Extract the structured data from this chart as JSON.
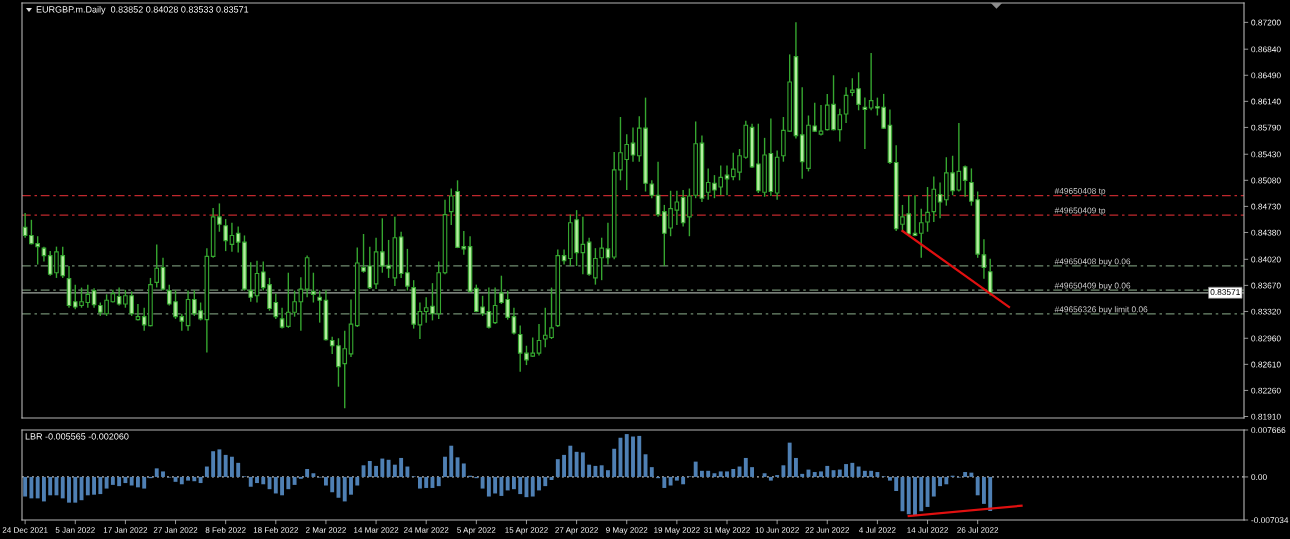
{
  "chart_data": [
    {
      "type": "candlestick",
      "title": "EURGBP.m.Daily  0.83852 0.84028 0.83533 0.83571",
      "color": "#36a730",
      "categories": [
        "24 Dec 2021",
        null,
        null,
        null,
        null,
        null,
        null,
        null,
        "5 Jan 2022",
        null,
        null,
        null,
        null,
        null,
        null,
        null,
        "17 Jan 2022",
        null,
        null,
        null,
        null,
        null,
        null,
        null,
        "27 Jan 2022",
        null,
        null,
        null,
        null,
        null,
        null,
        null,
        "8 Feb 2022",
        null,
        null,
        null,
        null,
        null,
        null,
        null,
        "18 Feb 2022",
        null,
        null,
        null,
        null,
        null,
        null,
        null,
        "2 Mar 2022",
        null,
        null,
        null,
        null,
        null,
        null,
        null,
        "14 Mar 2022",
        null,
        null,
        null,
        null,
        null,
        null,
        null,
        "24 Mar 2022",
        null,
        null,
        null,
        null,
        null,
        null,
        null,
        "5 Apr 2022",
        null,
        null,
        null,
        null,
        null,
        null,
        null,
        "15 Apr 2022",
        null,
        null,
        null,
        null,
        null,
        null,
        null,
        "27 Apr 2022",
        null,
        null,
        null,
        null,
        null,
        null,
        null,
        "9 May 2022",
        null,
        null,
        null,
        null,
        null,
        null,
        null,
        "19 May 2022",
        null,
        null,
        null,
        null,
        null,
        null,
        null,
        "31 May 2022",
        null,
        null,
        null,
        null,
        null,
        null,
        null,
        "10 Jun 2022",
        null,
        null,
        null,
        null,
        null,
        null,
        null,
        "22 Jun 2022",
        null,
        null,
        null,
        null,
        null,
        null,
        null,
        "4 Jul 2022",
        null,
        null,
        null,
        null,
        null,
        null,
        null,
        "14 Jul 2022",
        null,
        null,
        null,
        null,
        null,
        null,
        null,
        "26 Jul 2022",
        null,
        null,
        null,
        null,
        null,
        null,
        null,
        null,
        null,
        null,
        null,
        null,
        null,
        null,
        null,
        null,
        null,
        null,
        null,
        null,
        null,
        null,
        null,
        null,
        null,
        null,
        null,
        null,
        null,
        null,
        null,
        null,
        null,
        null,
        null,
        null,
        null,
        null,
        null,
        null,
        null,
        null
      ],
      "ohlc": [
        [
          0.8445,
          0.8464,
          0.8431,
          0.8434
        ],
        [
          0.8434,
          0.8455,
          0.8422,
          0.8423
        ],
        [
          0.8423,
          0.8433,
          0.8395,
          0.8419
        ],
        [
          0.8417,
          0.8419,
          0.8399,
          0.8407
        ],
        [
          0.8407,
          0.8413,
          0.838,
          0.8382
        ],
        [
          0.8384,
          0.8419,
          0.8377,
          0.8412
        ],
        [
          0.8407,
          0.8419,
          0.8377,
          0.838
        ],
        [
          0.8376,
          0.8393,
          0.8337,
          0.834
        ],
        [
          0.8345,
          0.8368,
          0.8335,
          0.8338
        ],
        [
          0.834,
          0.8364,
          0.8337,
          0.8345
        ],
        [
          0.8344,
          0.8368,
          0.8337,
          0.8355
        ],
        [
          0.836,
          0.8363,
          0.8337,
          0.8341
        ],
        [
          0.834,
          0.8344,
          0.8326,
          0.8331
        ],
        [
          0.8329,
          0.8355,
          0.8326,
          0.8347
        ],
        [
          0.8345,
          0.8361,
          0.8344,
          0.8356
        ],
        [
          0.8352,
          0.8364,
          0.834,
          0.8342
        ],
        [
          0.8342,
          0.8361,
          0.8337,
          0.8353
        ],
        [
          0.8353,
          0.8359,
          0.8326,
          0.8329
        ],
        [
          0.8321,
          0.8342,
          0.832,
          0.8325
        ],
        [
          0.8325,
          0.8337,
          0.8306,
          0.8314
        ],
        [
          0.8313,
          0.8377,
          0.8312,
          0.8368
        ],
        [
          0.8371,
          0.8422,
          0.8364,
          0.839
        ],
        [
          0.8391,
          0.8404,
          0.836,
          0.8362
        ],
        [
          0.836,
          0.8368,
          0.834,
          0.8342
        ],
        [
          0.8345,
          0.836,
          0.8322,
          0.8325
        ],
        [
          0.8325,
          0.8329,
          0.8306,
          0.8319
        ],
        [
          0.8313,
          0.836,
          0.8306,
          0.8348
        ],
        [
          0.8348,
          0.836,
          0.8326,
          0.8329
        ],
        [
          0.8333,
          0.8344,
          0.832,
          0.8322
        ],
        [
          0.8321,
          0.8417,
          0.8277,
          0.8406
        ],
        [
          0.8406,
          0.8471,
          0.8404,
          0.8459
        ],
        [
          0.8459,
          0.8477,
          0.8439,
          0.8449
        ],
        [
          0.8447,
          0.8456,
          0.8413,
          0.8427
        ],
        [
          0.8422,
          0.8451,
          0.8412,
          0.8434
        ],
        [
          0.8437,
          0.8446,
          0.8411,
          0.8425
        ],
        [
          0.8425,
          0.8434,
          0.836,
          0.8362
        ],
        [
          0.836,
          0.8398,
          0.8345,
          0.8351
        ],
        [
          0.8353,
          0.84,
          0.8344,
          0.8383
        ],
        [
          0.8385,
          0.8399,
          0.836,
          0.8364
        ],
        [
          0.8368,
          0.8377,
          0.8333,
          0.8336
        ],
        [
          0.8344,
          0.8356,
          0.8322,
          0.8325
        ],
        [
          0.8322,
          0.8337,
          0.8309,
          0.8311
        ],
        [
          0.8312,
          0.8384,
          0.831,
          0.8331
        ],
        [
          0.8331,
          0.836,
          0.8325,
          0.8345
        ],
        [
          0.8345,
          0.8378,
          0.8306,
          0.8362
        ],
        [
          0.8362,
          0.8407,
          0.8351,
          0.8404
        ],
        [
          0.8359,
          0.8384,
          0.8344,
          0.8355
        ],
        [
          0.8351,
          0.836,
          0.8317,
          0.8347
        ],
        [
          0.8347,
          0.836,
          0.8293,
          0.8294
        ],
        [
          0.8293,
          0.8298,
          0.8275,
          0.8286
        ],
        [
          0.8286,
          0.8296,
          0.8231,
          0.8258
        ],
        [
          0.8262,
          0.8306,
          0.8202,
          0.8282
        ],
        [
          0.8275,
          0.8348,
          0.8271,
          0.8315
        ],
        [
          0.8313,
          0.8418,
          0.8311,
          0.8397
        ],
        [
          0.8391,
          0.8436,
          0.8384,
          0.8386
        ],
        [
          0.8393,
          0.8419,
          0.8362,
          0.8364
        ],
        [
          0.8369,
          0.8431,
          0.8362,
          0.8412
        ],
        [
          0.8412,
          0.8457,
          0.8384,
          0.8393
        ],
        [
          0.8394,
          0.8428,
          0.8377,
          0.839
        ],
        [
          0.8377,
          0.8459,
          0.8366,
          0.8431
        ],
        [
          0.8432,
          0.8439,
          0.8377,
          0.8383
        ],
        [
          0.8384,
          0.8416,
          0.836,
          0.8366
        ],
        [
          0.8364,
          0.8374,
          0.8309,
          0.8315
        ],
        [
          0.8314,
          0.8344,
          0.8295,
          0.8332
        ],
        [
          0.8332,
          0.8351,
          0.8317,
          0.8337
        ],
        [
          0.8339,
          0.837,
          0.832,
          0.8329
        ],
        [
          0.8329,
          0.8399,
          0.8322,
          0.8384
        ],
        [
          0.8384,
          0.8482,
          0.8382,
          0.8462
        ],
        [
          0.8466,
          0.8497,
          0.8448,
          0.8487
        ],
        [
          0.8493,
          0.8508,
          0.8417,
          0.8418
        ],
        [
          0.8419,
          0.844,
          0.8408,
          0.8416
        ],
        [
          0.8419,
          0.8433,
          0.8357,
          0.8359
        ],
        [
          0.8363,
          0.8368,
          0.8331,
          0.8332
        ],
        [
          0.8338,
          0.8353,
          0.8326,
          0.8329
        ],
        [
          0.8332,
          0.8364,
          0.8309,
          0.8311
        ],
        [
          0.8317,
          0.8364,
          0.8315,
          0.834
        ],
        [
          0.8357,
          0.838,
          0.8342,
          0.8344
        ],
        [
          0.8348,
          0.836,
          0.8321,
          0.8324
        ],
        [
          0.8325,
          0.8337,
          0.8301,
          0.8303
        ],
        [
          0.8301,
          0.8313,
          0.8251,
          0.8276
        ],
        [
          0.8276,
          0.8286,
          0.826,
          0.8267
        ],
        [
          0.8272,
          0.8297,
          0.8271,
          0.8276
        ],
        [
          0.8276,
          0.8315,
          0.8273,
          0.8293
        ],
        [
          0.8295,
          0.8337,
          0.8284,
          0.83
        ],
        [
          0.8297,
          0.8364,
          0.8295,
          0.831
        ],
        [
          0.8313,
          0.8415,
          0.8311,
          0.8407
        ],
        [
          0.8407,
          0.8415,
          0.8395,
          0.84
        ],
        [
          0.8403,
          0.8462,
          0.8393,
          0.8451
        ],
        [
          0.8455,
          0.8468,
          0.8393,
          0.8411
        ],
        [
          0.8411,
          0.8459,
          0.8382,
          0.8422
        ],
        [
          0.8425,
          0.8431,
          0.838,
          0.8382
        ],
        [
          0.8377,
          0.8417,
          0.8368,
          0.8403
        ],
        [
          0.8404,
          0.8431,
          0.8374,
          0.8417
        ],
        [
          0.8416,
          0.8451,
          0.8395,
          0.8404
        ],
        [
          0.8405,
          0.8546,
          0.8402,
          0.8522
        ],
        [
          0.8522,
          0.8593,
          0.8508,
          0.8545
        ],
        [
          0.8536,
          0.857,
          0.8495,
          0.8556
        ],
        [
          0.8558,
          0.8579,
          0.8533,
          0.8542
        ],
        [
          0.8541,
          0.8594,
          0.8533,
          0.8578
        ],
        [
          0.8578,
          0.8619,
          0.8493,
          0.8504
        ],
        [
          0.8503,
          0.8508,
          0.8484,
          0.8488
        ],
        [
          0.8488,
          0.8533,
          0.8459,
          0.8462
        ],
        [
          0.8466,
          0.8475,
          0.8393,
          0.8437
        ],
        [
          0.8444,
          0.8494,
          0.8433,
          0.847
        ],
        [
          0.8468,
          0.8494,
          0.8448,
          0.8479
        ],
        [
          0.8485,
          0.8495,
          0.8446,
          0.8451
        ],
        [
          0.8459,
          0.8497,
          0.8433,
          0.8487
        ],
        [
          0.8488,
          0.8587,
          0.8484,
          0.8557
        ],
        [
          0.8558,
          0.8568,
          0.8479,
          0.8484
        ],
        [
          0.8492,
          0.8524,
          0.8482,
          0.8505
        ],
        [
          0.8504,
          0.8515,
          0.8484,
          0.8495
        ],
        [
          0.8499,
          0.8528,
          0.8488,
          0.8512
        ],
        [
          0.8515,
          0.8528,
          0.8488,
          0.851
        ],
        [
          0.8513,
          0.8545,
          0.8508,
          0.8523
        ],
        [
          0.8519,
          0.855,
          0.8508,
          0.8541
        ],
        [
          0.8539,
          0.8588,
          0.8537,
          0.8582
        ],
        [
          0.8579,
          0.8584,
          0.8525,
          0.8526
        ],
        [
          0.853,
          0.8584,
          0.8491,
          0.8494
        ],
        [
          0.8492,
          0.8565,
          0.8486,
          0.8542
        ],
        [
          0.8544,
          0.8591,
          0.8487,
          0.8493
        ],
        [
          0.8491,
          0.8548,
          0.8482,
          0.8539
        ],
        [
          0.8541,
          0.8593,
          0.8533,
          0.8575
        ],
        [
          0.8574,
          0.8677,
          0.8573,
          0.864
        ],
        [
          0.8674,
          0.872,
          0.8564,
          0.8568
        ],
        [
          0.8569,
          0.8633,
          0.851,
          0.8533
        ],
        [
          0.8524,
          0.8595,
          0.852,
          0.8582
        ],
        [
          0.8581,
          0.8612,
          0.8573,
          0.8574
        ],
        [
          0.857,
          0.8609,
          0.8568,
          0.8574
        ],
        [
          0.8576,
          0.8624,
          0.8575,
          0.8609
        ],
        [
          0.861,
          0.8649,
          0.8575,
          0.8576
        ],
        [
          0.8576,
          0.8604,
          0.856,
          0.8596
        ],
        [
          0.8597,
          0.8633,
          0.8585,
          0.8622
        ],
        [
          0.8626,
          0.8645,
          0.8621,
          0.8629
        ],
        [
          0.8631,
          0.8653,
          0.8602,
          0.861
        ],
        [
          0.8606,
          0.8619,
          0.855,
          0.8603
        ],
        [
          0.8605,
          0.8679,
          0.8602,
          0.8615
        ],
        [
          0.8607,
          0.8619,
          0.8595,
          0.8605
        ],
        [
          0.8606,
          0.8624,
          0.8577,
          0.8578
        ],
        [
          0.8582,
          0.8603,
          0.853,
          0.8532
        ],
        [
          0.8532,
          0.8555,
          0.844,
          0.8443
        ],
        [
          0.8449,
          0.8475,
          0.8439,
          0.8459
        ],
        [
          0.8463,
          0.8488,
          0.8434,
          0.8436
        ],
        [
          0.8437,
          0.8488,
          0.8433,
          0.8434
        ],
        [
          0.8437,
          0.847,
          0.8404,
          0.8451
        ],
        [
          0.8452,
          0.8499,
          0.8439,
          0.8465
        ],
        [
          0.8466,
          0.8513,
          0.8452,
          0.8496
        ],
        [
          0.8489,
          0.8505,
          0.8457,
          0.8479
        ],
        [
          0.8482,
          0.8539,
          0.8474,
          0.8518
        ],
        [
          0.8518,
          0.8541,
          0.8488,
          0.8494
        ],
        [
          0.8495,
          0.8585,
          0.8493,
          0.852
        ],
        [
          0.8526,
          0.8528,
          0.8486,
          0.8508
        ],
        [
          0.8505,
          0.8524,
          0.8474,
          0.848
        ],
        [
          0.8482,
          0.8493,
          0.8404,
          0.8409
        ],
        [
          0.8408,
          0.8429,
          0.8376,
          0.8391
        ],
        [
          0.83852,
          0.84028,
          0.83533,
          0.83571
        ],
        null,
        null,
        null,
        null,
        null,
        null,
        null,
        null,
        null,
        null,
        null,
        null,
        null,
        null,
        null,
        null,
        null,
        null,
        null,
        null,
        null,
        null,
        null,
        null,
        null,
        null,
        null,
        null,
        null,
        null,
        null,
        null,
        null,
        null,
        null,
        null,
        null,
        null,
        null,
        null
      ],
      "colors": [
        "#b4eea0",
        "#b4eea0",
        "#b4eea0",
        "#b4eea0",
        "#b4eea0",
        "#000000",
        "#b4eea0",
        "#b4eea0",
        "#b4eea0",
        "#000000",
        "#000000",
        "#b4eea0",
        "#b4eea0",
        "#000000",
        "#000000",
        "#b4eea0",
        "#000000",
        "#b4eea0",
        "#000000",
        "#b4eea0",
        "#000000",
        "#000000",
        "#b4eea0",
        "#b4eea0",
        "#b4eea0",
        "#b4eea0",
        "#000000",
        "#b4eea0",
        "#b4eea0",
        "#000000",
        "#000000",
        "#b4eea0",
        "#b4eea0",
        "#000000",
        "#b4eea0",
        "#b4eea0",
        "#b4eea0",
        "#000000",
        "#b4eea0",
        "#b4eea0",
        "#b4eea0",
        "#b4eea0",
        "#000000",
        "#000000",
        "#000000",
        "#000000",
        "#b4eea0",
        "#b4eea0",
        "#b4eea0",
        "#b4eea0",
        "#b4eea0",
        "#000000",
        "#000000",
        "#000000",
        "#b4eea0",
        "#b4eea0",
        "#000000",
        "#b4eea0",
        "#b4eea0",
        "#000000",
        "#b4eea0",
        "#b4eea0",
        "#b4eea0",
        "#000000",
        "#000000",
        "#b4eea0",
        "#000000",
        "#000000",
        "#000000",
        "#b4eea0",
        "#b4eea0",
        "#b4eea0",
        "#b4eea0",
        "#b4eea0",
        "#b4eea0",
        "#000000",
        "#b4eea0",
        "#b4eea0",
        "#b4eea0",
        "#b4eea0",
        "#b4eea0",
        "#000000",
        "#000000",
        "#000000",
        "#000000",
        "#000000",
        "#b4eea0",
        "#000000",
        "#b4eea0",
        "#000000",
        "#b4eea0",
        "#000000",
        "#000000",
        "#b4eea0",
        "#000000",
        "#000000",
        "#000000",
        "#b4eea0",
        "#000000",
        "#b4eea0",
        "#b4eea0",
        "#b4eea0",
        "#b4eea0",
        "#000000",
        "#000000",
        "#b4eea0",
        "#000000",
        "#000000",
        "#b4eea0",
        "#000000",
        "#b4eea0",
        "#000000",
        "#b4eea0",
        "#000000",
        "#000000",
        "#000000",
        "#b4eea0",
        "#b4eea0",
        "#000000",
        "#b4eea0",
        "#000000",
        "#000000",
        "#000000",
        "#b4eea0",
        "#b4eea0",
        "#000000",
        "#b4eea0",
        "#000000",
        "#000000",
        "#b4eea0",
        "#000000",
        "#000000",
        "#000000",
        "#b4eea0",
        "#b4eea0",
        "#000000",
        "#b4eea0",
        "#b4eea0",
        "#b4eea0",
        "#b4eea0",
        "#000000",
        "#b4eea0",
        "#b4eea0",
        "#000000",
        "#000000",
        "#000000",
        "#b4eea0",
        "#000000",
        "#b4eea0",
        "#000000",
        "#b4eea0",
        "#b4eea0",
        "#b4eea0",
        "#b4eea0",
        "#b4eea0",
        null,
        null,
        null,
        null,
        null,
        null,
        null,
        null,
        null,
        null,
        null,
        null,
        null,
        null,
        null,
        null,
        null,
        null,
        null,
        null,
        null,
        null,
        null,
        null,
        null,
        null,
        null,
        null,
        null,
        null,
        null,
        null,
        null,
        null,
        null,
        null,
        null,
        null,
        null,
        null
      ],
      "series": [
        {
          "type": "line",
          "color": "#e01010",
          "values": [
            null,
            null,
            null,
            null,
            null,
            null,
            null,
            null,
            null,
            null,
            null,
            null,
            null,
            null,
            null,
            null,
            null,
            null,
            null,
            null,
            null,
            null,
            null,
            null,
            null,
            null,
            null,
            null,
            null,
            null,
            null,
            null,
            null,
            null,
            null,
            null,
            null,
            null,
            null,
            null,
            null,
            null,
            null,
            null,
            null,
            null,
            null,
            null,
            null,
            null,
            null,
            null,
            null,
            null,
            null,
            null,
            null,
            null,
            null,
            null,
            null,
            null,
            null,
            null,
            null,
            null,
            null,
            null,
            null,
            null,
            null,
            null,
            null,
            null,
            null,
            null,
            null,
            null,
            null,
            null,
            null,
            null,
            null,
            null,
            null,
            null,
            null,
            null,
            null,
            null,
            null,
            null,
            null,
            null,
            null,
            null,
            null,
            null,
            null,
            null,
            null,
            null,
            null,
            null,
            null,
            null,
            null,
            null,
            null,
            null,
            null,
            null,
            null,
            null,
            null,
            null,
            null,
            null,
            null,
            null,
            null,
            null,
            null,
            null,
            null,
            null,
            null,
            null,
            null,
            null,
            null,
            null,
            null,
            null,
            null,
            null,
            null,
            null,
            null,
            null,
            0.844,
            null,
            null,
            null,
            null,
            null,
            null,
            null,
            null,
            null,
            null,
            null,
            null,
            null,
            null,
            null,
            null,
            0.8338,
            null,
            null,
            null,
            null,
            null,
            null,
            null,
            null,
            null,
            null,
            null,
            null,
            null,
            null,
            null,
            null,
            null,
            null,
            null,
            null,
            null,
            null,
            null,
            null,
            null,
            null,
            null,
            null,
            null,
            null,
            null,
            null,
            null,
            null,
            null,
            null,
            null
          ]
        }
      ],
      "ylim": [
        0.8189,
        0.8746
      ],
      "yticks": [
        {
          "value": 0.872,
          "label": "0.87200"
        },
        {
          "value": 0.8684,
          "label": "0.86840"
        },
        {
          "value": 0.8649,
          "label": "0.86490"
        },
        {
          "value": 0.8614,
          "label": "0.86140"
        },
        {
          "value": 0.8579,
          "label": "0.85790"
        },
        {
          "value": 0.8543,
          "label": "0.85430"
        },
        {
          "value": 0.8508,
          "label": "0.85080"
        },
        {
          "value": 0.8473,
          "label": "0.84730"
        },
        {
          "value": 0.8438,
          "label": "0.84380"
        },
        {
          "value": 0.8402,
          "label": "0.84020"
        },
        {
          "value": 0.8367,
          "label": "0.83670"
        },
        {
          "value": 0.8332,
          "label": "0.83320"
        },
        {
          "value": 0.8296,
          "label": "0.82960"
        },
        {
          "value": 0.8261,
          "label": "0.82610"
        },
        {
          "value": 0.8226,
          "label": "0.82260"
        },
        {
          "value": 0.8191,
          "label": "0.81910"
        }
      ],
      "tick_labels": "y",
      "ref_lines": [
        {
          "axis": "y",
          "value": 0.84876,
          "label": "#49650408 tp",
          "color": "#c0282d",
          "line_style": "dashed"
        },
        {
          "axis": "y",
          "value": 0.84614,
          "label": "#49650409 tp",
          "color": "#c0282d",
          "line_style": "dashed"
        },
        {
          "axis": "y",
          "value": 0.83931,
          "label": "#49650408 buy 0.06",
          "color": "#708c70",
          "line_style": "dashed"
        },
        {
          "axis": "y",
          "value": 0.83606,
          "label": "#49650409 buy 0.06",
          "color": "#708c70",
          "line_style": "dashed"
        },
        {
          "axis": "y",
          "value": 0.83287,
          "label": "#49656326 buy limit 0.06",
          "color": "#708c70",
          "line_style": "dashed"
        },
        {
          "axis": "y",
          "value": 0.83571,
          "label": "0.83571",
          "color": "#a0a8a0",
          "line_style": "solid"
        }
      ]
    },
    {
      "type": "bar",
      "title": "LBR -0.005565 -0.002060",
      "categories": [
        "24 Dec 2021",
        null,
        null,
        null,
        null,
        null,
        null,
        null,
        "5 Jan 2022",
        null,
        null,
        null,
        null,
        null,
        null,
        null,
        "17 Jan 2022",
        null,
        null,
        null,
        null,
        null,
        null,
        null,
        "27 Jan 2022",
        null,
        null,
        null,
        null,
        null,
        null,
        null,
        "8 Feb 2022",
        null,
        null,
        null,
        null,
        null,
        null,
        null,
        "18 Feb 2022",
        null,
        null,
        null,
        null,
        null,
        null,
        null,
        "2 Mar 2022",
        null,
        null,
        null,
        null,
        null,
        null,
        null,
        "14 Mar 2022",
        null,
        null,
        null,
        null,
        null,
        null,
        null,
        "24 Mar 2022",
        null,
        null,
        null,
        null,
        null,
        null,
        null,
        "5 Apr 2022",
        null,
        null,
        null,
        null,
        null,
        null,
        null,
        "15 Apr 2022",
        null,
        null,
        null,
        null,
        null,
        null,
        null,
        "27 Apr 2022",
        null,
        null,
        null,
        null,
        null,
        null,
        null,
        "9 May 2022",
        null,
        null,
        null,
        null,
        null,
        null,
        null,
        "19 May 2022",
        null,
        null,
        null,
        null,
        null,
        null,
        null,
        "31 May 2022",
        null,
        null,
        null,
        null,
        null,
        null,
        null,
        "10 Jun 2022",
        null,
        null,
        null,
        null,
        null,
        null,
        null,
        "22 Jun 2022",
        null,
        null,
        null,
        null,
        null,
        null,
        null,
        "4 Jul 2022",
        null,
        null,
        null,
        null,
        null,
        null,
        null,
        "14 Jul 2022",
        null,
        null,
        null,
        null,
        null,
        null,
        null,
        "26 Jul 2022",
        null,
        null,
        null,
        null,
        null,
        null,
        null,
        null,
        null,
        null,
        null,
        null,
        null,
        null,
        null,
        null,
        null,
        null,
        null,
        null,
        null,
        null,
        null,
        null,
        null,
        null,
        null,
        null,
        null,
        null,
        null,
        null,
        null,
        null,
        null,
        null,
        null,
        null,
        null,
        null,
        null,
        null
      ],
      "series": [
        {
          "color": "#4f80b4",
          "values": [
            -0.0032,
            -0.0035,
            -0.0035,
            -0.004,
            -0.003,
            -0.003,
            -0.0035,
            -0.0042,
            -0.0042,
            -0.0038,
            -0.003,
            -0.0029,
            -0.0028,
            -0.0019,
            -0.0013,
            -0.0015,
            -0.001,
            -0.0014,
            -0.0017,
            -0.0019,
            -0.0002,
            0.0014,
            0.0009,
            -0.0001,
            -0.0008,
            -0.0012,
            -0.0006,
            -0.0007,
            -0.001,
            0.0017,
            0.0042,
            0.0045,
            0.0036,
            0.0033,
            0.0023,
            0.0001,
            -0.0016,
            -0.001,
            -0.0012,
            -0.002,
            -0.0027,
            -0.003,
            -0.002,
            -0.0013,
            -0.0003,
            0.0013,
            0.0006,
            -0.0001,
            -0.0014,
            -0.0025,
            -0.0034,
            -0.004,
            -0.0029,
            -0.0014,
            0.0019,
            0.0026,
            0.0018,
            0.003,
            0.0028,
            0.002,
            0.0031,
            0.0017,
            0.0001,
            -0.0019,
            -0.0018,
            -0.0018,
            -0.0015,
            0.0033,
            0.0051,
            0.0032,
            0.0022,
            0.0002,
            -0.0002,
            -0.0019,
            -0.0032,
            -0.0027,
            -0.0031,
            -0.0022,
            -0.002,
            -0.0028,
            -0.0033,
            -0.0032,
            -0.0022,
            -0.0015,
            -0.0005,
            0.0029,
            0.0036,
            0.0051,
            0.0041,
            0.004,
            0.002,
            0.0018,
            0.0019,
            0.0011,
            0.0046,
            0.0064,
            0.007,
            0.0066,
            0.0067,
            0.0037,
            0.0016,
            -0.0002,
            -0.0018,
            -0.0014,
            -0.0006,
            -0.0012,
            0.0001,
            0.0025,
            0.001,
            0.001,
            0.0006,
            0.0009,
            0.0009,
            0.0013,
            0.0017,
            0.0031,
            0.0016,
            0.0,
            0.0006,
            -0.0006,
            0.0003,
            0.0019,
            0.0056,
            0.0031,
            0.0005,
            0.0012,
            0.0008,
            0.0009,
            0.0018,
            0.0011,
            0.0012,
            0.0021,
            0.0023,
            0.0017,
            0.001,
            0.001,
            0.0008,
            0.0001,
            -0.0006,
            -0.0023,
            -0.0056,
            -0.0061,
            -0.0063,
            -0.0056,
            -0.0049,
            -0.0032,
            -0.0015,
            -0.0012,
            0.0002,
            -0.0001,
            0.0008,
            0.0007,
            -0.003,
            -0.0044,
            -0.005565,
            null,
            null,
            null,
            null,
            null,
            null,
            null,
            null,
            null,
            null,
            null,
            null,
            null,
            null,
            null,
            null,
            null,
            null,
            null,
            null,
            null,
            null,
            null,
            null,
            null,
            null,
            null,
            null,
            null,
            null,
            null,
            null,
            null,
            null,
            null,
            null,
            null,
            null,
            null,
            null
          ]
        },
        {
          "type": "line",
          "color": "#e01010",
          "values": [
            null,
            null,
            null,
            null,
            null,
            null,
            null,
            null,
            null,
            null,
            null,
            null,
            null,
            null,
            null,
            null,
            null,
            null,
            null,
            null,
            null,
            null,
            null,
            null,
            null,
            null,
            null,
            null,
            null,
            null,
            null,
            null,
            null,
            null,
            null,
            null,
            null,
            null,
            null,
            null,
            null,
            null,
            null,
            null,
            null,
            null,
            null,
            null,
            null,
            null,
            null,
            null,
            null,
            null,
            null,
            null,
            null,
            null,
            null,
            null,
            null,
            null,
            null,
            null,
            null,
            null,
            null,
            null,
            null,
            null,
            null,
            null,
            null,
            null,
            null,
            null,
            null,
            null,
            null,
            null,
            null,
            null,
            null,
            null,
            null,
            null,
            null,
            null,
            null,
            null,
            null,
            null,
            null,
            null,
            null,
            null,
            null,
            null,
            null,
            null,
            null,
            null,
            null,
            null,
            null,
            null,
            null,
            null,
            null,
            null,
            null,
            null,
            null,
            null,
            null,
            null,
            null,
            null,
            null,
            null,
            null,
            null,
            null,
            null,
            null,
            null,
            null,
            null,
            null,
            null,
            null,
            null,
            null,
            null,
            null,
            null,
            null,
            null,
            null,
            null,
            null,
            -0.0064,
            null,
            null,
            null,
            null,
            null,
            null,
            null,
            null,
            null,
            null,
            null,
            null,
            null,
            null,
            null,
            null,
            null,
            -0.0047,
            null,
            null,
            null,
            null,
            null,
            null,
            null,
            null,
            null,
            null,
            null,
            null,
            null,
            null,
            null,
            null,
            null,
            null,
            null,
            null,
            null,
            null,
            null,
            null,
            null,
            null,
            null,
            null,
            null,
            null,
            null,
            null,
            null,
            null,
            null
          ]
        }
      ],
      "ylim": [
        -0.007034,
        0.007666
      ],
      "yticks": [
        0.007666,
        {
          "value": 0,
          "label": "0.00"
        },
        -0.007034
      ],
      "ref_lines": [
        {
          "axis": "y",
          "value": 0,
          "color": "#c0c0c0",
          "line_style": "dotted"
        }
      ]
    }
  ]
}
